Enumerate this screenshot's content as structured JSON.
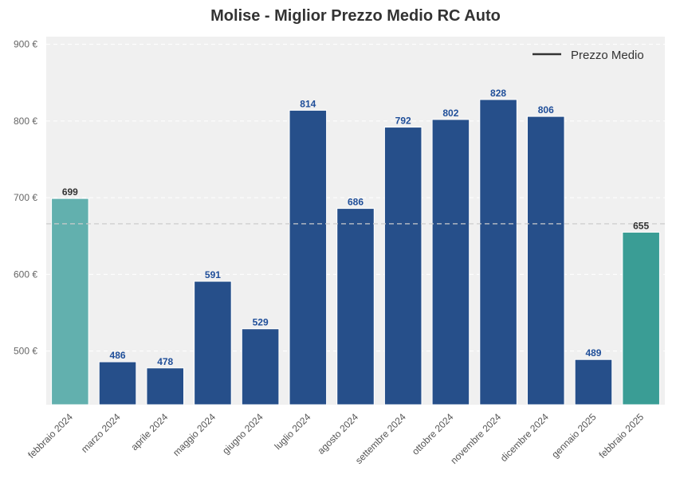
{
  "chart_data": {
    "type": "bar",
    "title": "Molise - Miglior Prezzo Medio RC Auto",
    "xlabel": "",
    "ylabel": "",
    "categories": [
      "febbraio 2024",
      "marzo 2024",
      "aprile 2024",
      "maggio 2024",
      "giugno 2024",
      "luglio 2024",
      "agosto 2024",
      "settembre 2024",
      "ottobre 2024",
      "novembre 2024",
      "dicembre 2024",
      "gennaio 2025",
      "febbraio 2025"
    ],
    "values": [
      699,
      486,
      478,
      591,
      529,
      814,
      686,
      792,
      802,
      828,
      806,
      489,
      655
    ],
    "bar_colors": [
      "#62b0ae",
      "#264f8a",
      "#264f8a",
      "#264f8a",
      "#264f8a",
      "#264f8a",
      "#264f8a",
      "#264f8a",
      "#264f8a",
      "#264f8a",
      "#264f8a",
      "#264f8a",
      "#3a9d95"
    ],
    "label_colors": [
      "#333333",
      "#1f4e99",
      "#1f4e99",
      "#1f4e99",
      "#1f4e99",
      "#1f4e99",
      "#1f4e99",
      "#1f4e99",
      "#1f4e99",
      "#1f4e99",
      "#1f4e99",
      "#1f4e99",
      "#333333"
    ],
    "ylim": [
      430,
      910
    ],
    "yticks": [
      500,
      600,
      700,
      800,
      900
    ],
    "ytick_suffix": " €",
    "mean_line": 666,
    "legend": {
      "label": "Prezzo Medio",
      "placement": "top-right"
    },
    "grid": true,
    "background": "#f0f0f0"
  }
}
